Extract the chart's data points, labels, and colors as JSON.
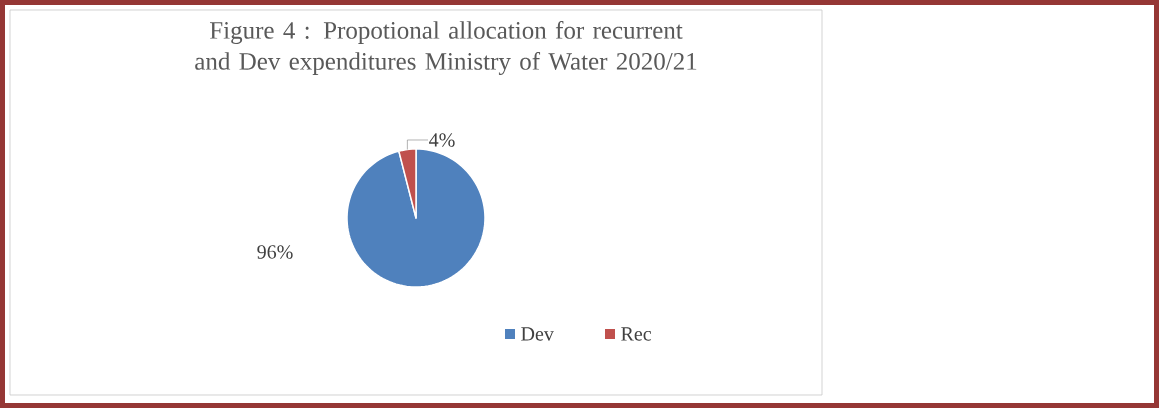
{
  "chart_data": {
    "type": "pie",
    "title": "Figure 4 : Propotional allocation for recurrent and Dev expenditures Ministry of Water 2020/21",
    "categories": [
      "Dev",
      "Rec"
    ],
    "values": [
      96,
      4
    ],
    "colors": [
      "#4f81bd",
      "#c0504d"
    ],
    "value_labels": [
      "96%",
      "4%"
    ],
    "legend": "bottom"
  }
}
